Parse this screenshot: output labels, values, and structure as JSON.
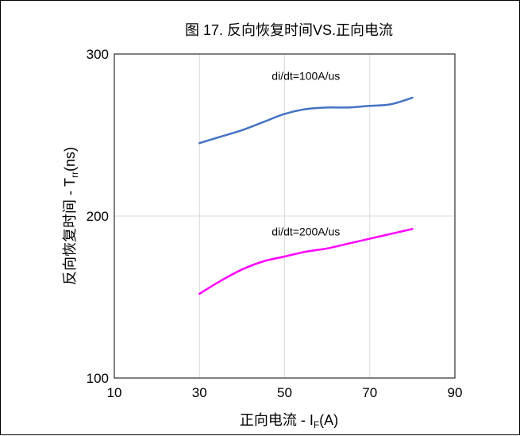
{
  "chart_data": {
    "type": "line",
    "title": "图 17. 反向恢复时间VS.正向电流",
    "xlabel": {
      "main": "正向电流 - I",
      "sub": "F",
      "tail": "(A)"
    },
    "ylabel": {
      "main": "反向恢复时间 - T",
      "sub": "rr",
      "tail": "(ns)"
    },
    "xlim": [
      10,
      90
    ],
    "ylim": [
      100,
      300
    ],
    "xticks": [
      10,
      30,
      50,
      70,
      90
    ],
    "yticks": [
      100,
      200,
      300
    ],
    "grid": true,
    "series": [
      {
        "name": "di/dt=100A/us",
        "color": "#4472C4",
        "x": [
          30,
          35,
          40,
          45,
          50,
          55,
          60,
          65,
          70,
          75,
          80
        ],
        "values": [
          245,
          249,
          253,
          258,
          263,
          266,
          267,
          267,
          268,
          269,
          273
        ]
      },
      {
        "name": "di/dt=200A/us",
        "color": "#FF00FF",
        "x": [
          30,
          35,
          40,
          45,
          50,
          55,
          60,
          65,
          70,
          75,
          80
        ],
        "values": [
          152,
          160,
          167,
          172,
          175,
          178,
          180,
          183,
          186,
          189,
          192
        ]
      }
    ],
    "annotations": [
      {
        "text": "di/dt=100A/us",
        "x": 55,
        "y": 284
      },
      {
        "text": "di/dt=200A/us",
        "x": 55,
        "y": 188
      }
    ]
  }
}
